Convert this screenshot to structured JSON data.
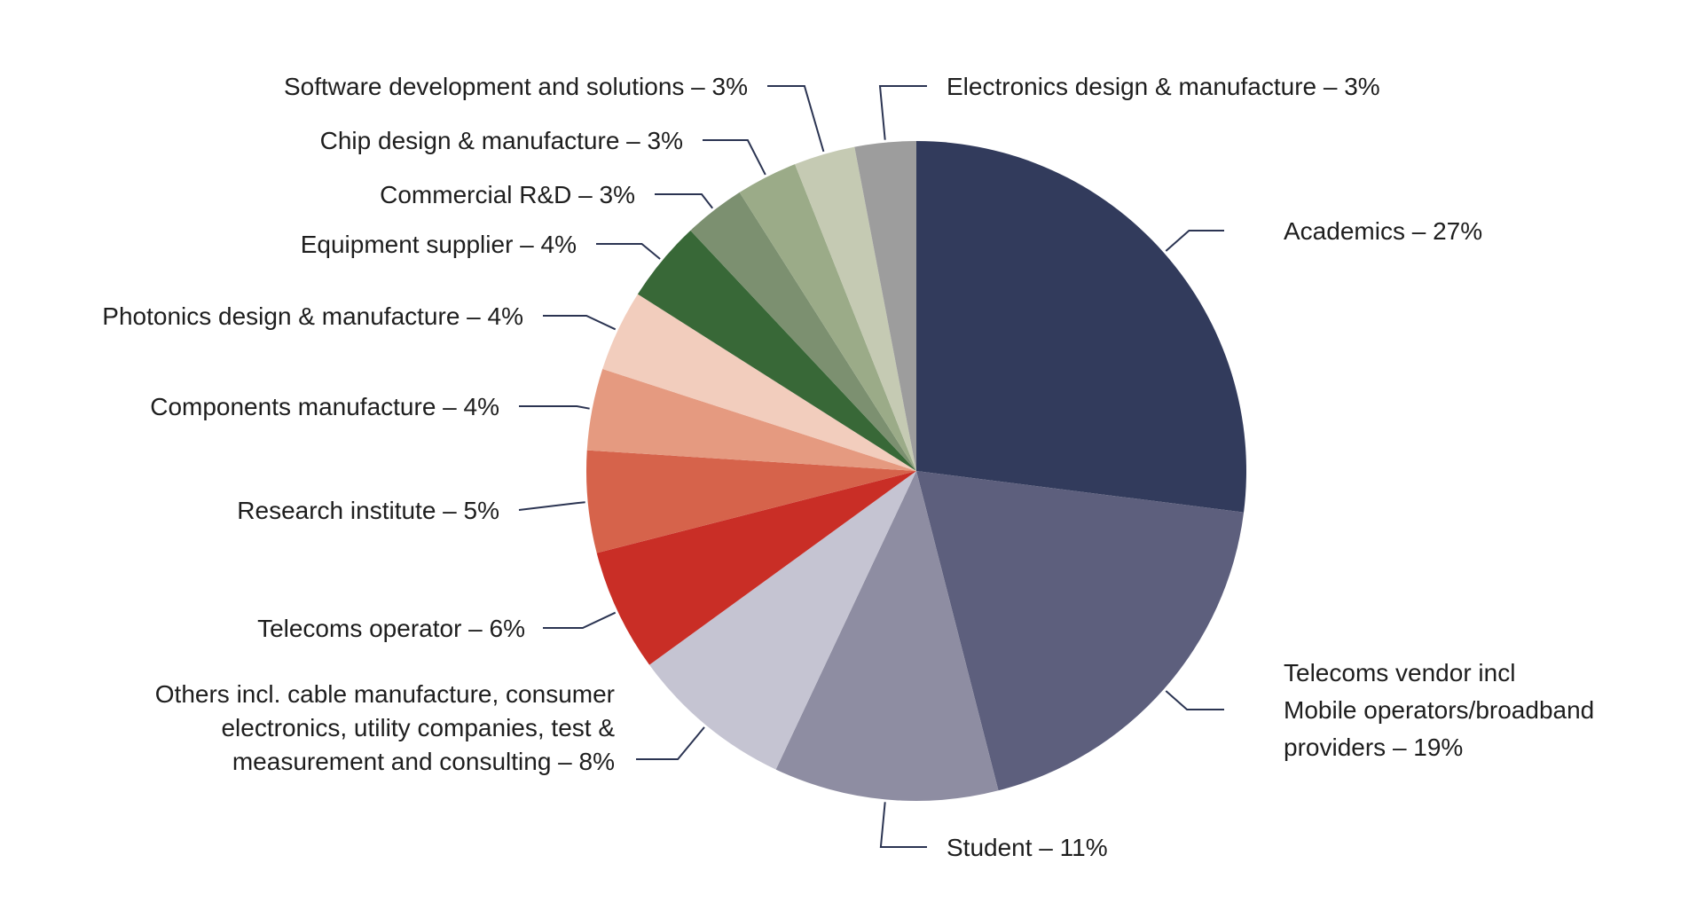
{
  "chart_data": {
    "type": "pie",
    "start_angle_deg": 0,
    "direction": "clockwise",
    "slices": [
      {
        "label": "Academics – 27%",
        "value": 27,
        "color": "#323b5c"
      },
      {
        "label": "Telecoms vendor incl\nMobile operators/broadband\nproviders – 19%",
        "value": 19,
        "color": "#5d5f7d"
      },
      {
        "label": "Student – 11%",
        "value": 11,
        "color": "#8e8da2"
      },
      {
        "label": "Others incl. cable manufacture, consumer\nelectronics, utility companies, test &\nmeasurement and consulting – 8%",
        "value": 8,
        "color": "#c5c4d2"
      },
      {
        "label": "Telecoms operator – 6%",
        "value": 6,
        "color": "#c92e26"
      },
      {
        "label": "Research institute – 5%",
        "value": 5,
        "color": "#d6634b"
      },
      {
        "label": "Components manufacture – 4%",
        "value": 4,
        "color": "#e59a80"
      },
      {
        "label": "Photonics design & manufacture – 4%",
        "value": 4,
        "color": "#f2cdbd"
      },
      {
        "label": "Equipment supplier – 4%",
        "value": 4,
        "color": "#386837"
      },
      {
        "label": "Commercial R&D – 3%",
        "value": 3,
        "color": "#7c9070"
      },
      {
        "label": "Chip design & manufacture – 3%",
        "value": 3,
        "color": "#9bab88"
      },
      {
        "label": "Software development and solutions – 3%",
        "value": 3,
        "color": "#c5cab3"
      },
      {
        "label": "Electronics design & manufacture – 3%",
        "value": 3,
        "color": "#9d9d9d"
      }
    ],
    "leader_color": "#2b3452",
    "legend": "none"
  }
}
